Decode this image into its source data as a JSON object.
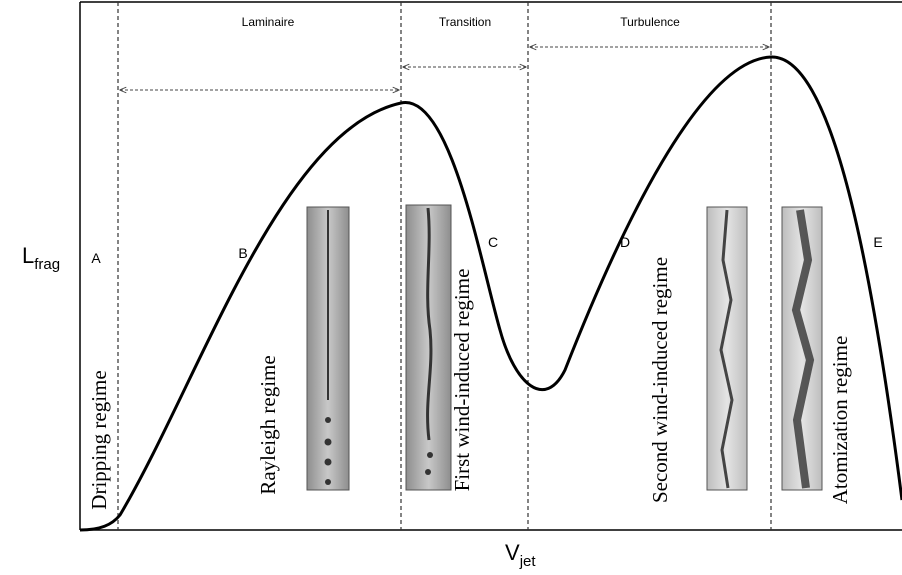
{
  "axes": {
    "y_label": {
      "main": "L",
      "sub": "frag"
    },
    "x_label": {
      "main": "V",
      "sub": "jet"
    }
  },
  "flow_zones": [
    {
      "label": "Laminaire"
    },
    {
      "label": "Transition"
    },
    {
      "label": "Turbulence"
    }
  ],
  "regions": [
    {
      "letter": "A",
      "regime": "Dripping regime"
    },
    {
      "letter": "B",
      "regime": "Rayleigh regime"
    },
    {
      "letter": "C",
      "regime": "First wind-induced regime"
    },
    {
      "letter": "D",
      "regime": "Second wind-induced regime"
    },
    {
      "letter": "E",
      "regime": "Atomization regime"
    }
  ]
}
